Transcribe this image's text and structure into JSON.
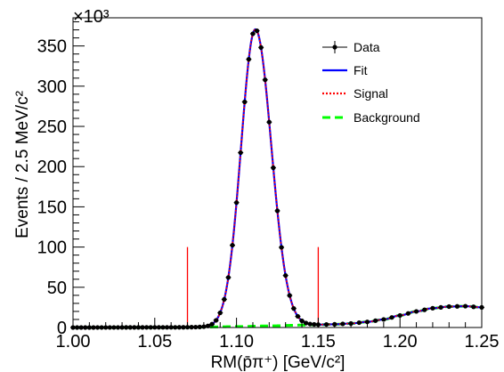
{
  "chart_data": {
    "type": "line",
    "title": "",
    "xlabel": "RM(p̄π⁺) [GeV/c²]",
    "ylabel": "Events / 2.5 MeV/c²",
    "y_multiplier": "×10³",
    "xlim": [
      1.0,
      1.25
    ],
    "ylim": [
      0,
      385
    ],
    "x_ticks": [
      "1.00",
      "1.05",
      "1.10",
      "1.15",
      "1.20",
      "1.25"
    ],
    "y_ticks": [
      "0",
      "50",
      "100",
      "150",
      "200",
      "250",
      "300",
      "350"
    ],
    "legend": {
      "position": "top-right",
      "entries": [
        {
          "label": "Data",
          "color": "#000000",
          "style": "marker"
        },
        {
          "label": "Fit",
          "color": "#0000ff",
          "style": "solid"
        },
        {
          "label": "Signal",
          "color": "#ff0000",
          "style": "dotted"
        },
        {
          "label": "Background",
          "color": "#00ff00",
          "style": "dashed"
        }
      ]
    },
    "signal_window": {
      "lower": 1.07,
      "upper": 1.15,
      "height": 100,
      "color": "#ff0000"
    },
    "model": {
      "signal": {
        "peak_x": 1.1115,
        "peak_y": 369,
        "sigma_left": 0.0087,
        "sigma_right": 0.0098
      },
      "background": {
        "x": [
          1.0,
          1.06,
          1.08,
          1.1,
          1.12,
          1.14,
          1.15,
          1.16,
          1.17,
          1.18,
          1.19,
          1.2,
          1.21,
          1.22,
          1.23,
          1.24,
          1.25
        ],
        "y": [
          0,
          0.2,
          0.5,
          1.2,
          2,
          3,
          3.5,
          4,
          5,
          7,
          10,
          15,
          20,
          24,
          26,
          26.5,
          25
        ]
      }
    },
    "data_x": [
      1.0,
      1.0025,
      1.005,
      1.0075,
      1.01,
      1.0125,
      1.015,
      1.0175,
      1.02,
      1.0225,
      1.025,
      1.0275,
      1.03,
      1.0325,
      1.035,
      1.0375,
      1.04,
      1.0425,
      1.045,
      1.0475,
      1.05,
      1.0525,
      1.055,
      1.0575,
      1.06,
      1.0625,
      1.065,
      1.0675,
      1.07,
      1.0725,
      1.075,
      1.0775,
      1.08,
      1.0825,
      1.085,
      1.0875,
      1.09,
      1.0925,
      1.095,
      1.0975,
      1.1,
      1.1025,
      1.105,
      1.1075,
      1.11,
      1.1125,
      1.115,
      1.1175,
      1.12,
      1.1225,
      1.125,
      1.1275,
      1.13,
      1.1325,
      1.135,
      1.1375,
      1.14,
      1.1425,
      1.145,
      1.1475,
      1.15,
      1.155,
      1.16,
      1.165,
      1.17,
      1.175,
      1.18,
      1.185,
      1.19,
      1.195,
      1.2,
      1.205,
      1.21,
      1.215,
      1.22,
      1.225,
      1.23,
      1.235,
      1.24,
      1.245,
      1.25
    ]
  }
}
